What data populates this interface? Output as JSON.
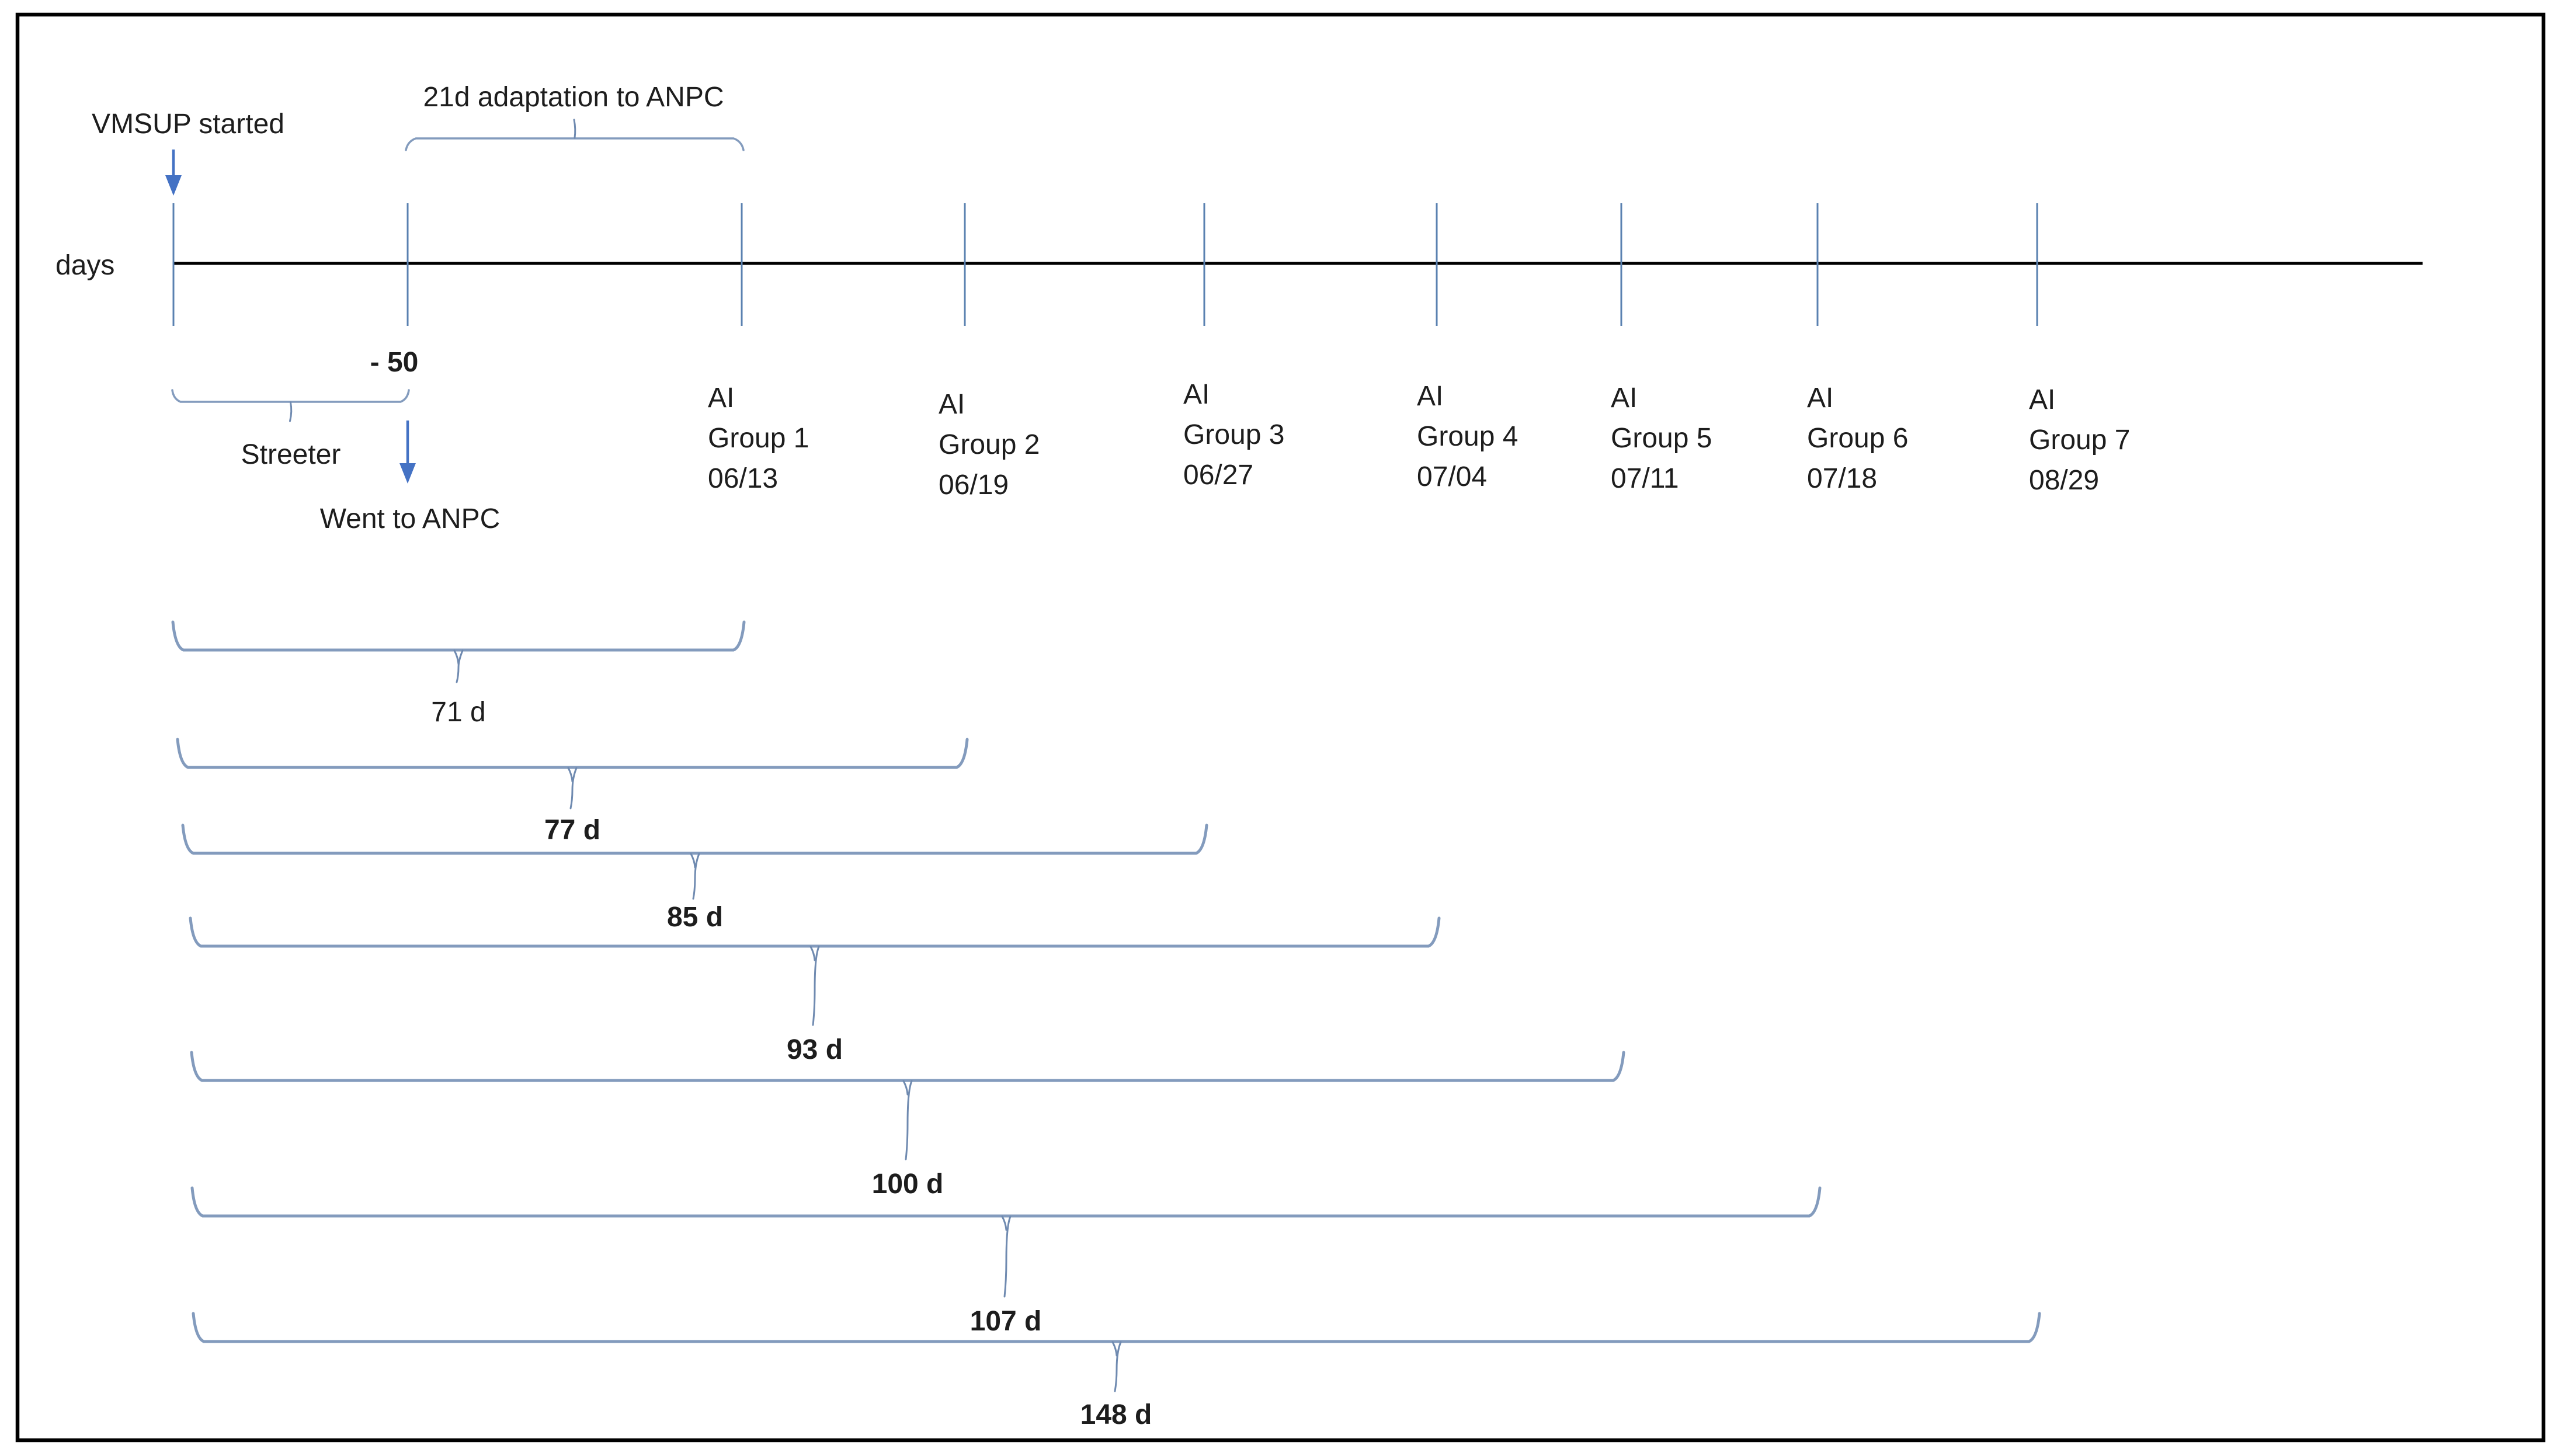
{
  "axis_label": "days",
  "annotations": {
    "vmsup": "VMSUP started",
    "adaptation": "21d adaptation to ANPC",
    "minus_50": "- 50",
    "streeter": "Streeter",
    "went_to_anpc": "Went to ANPC"
  },
  "groups": [
    {
      "line1": "AI",
      "line2": "Group 1",
      "date": "06/13"
    },
    {
      "line1": "AI",
      "line2": "Group 2",
      "date": "06/19"
    },
    {
      "line1": "AI",
      "line2": "Group 3",
      "date": "06/27"
    },
    {
      "line1": "AI",
      "line2": "Group 4",
      "date": "07/04"
    },
    {
      "line1": "AI",
      "line2": "Group 5",
      "date": "07/11"
    },
    {
      "line1": "AI",
      "line2": "Group 6",
      "date": "07/18"
    },
    {
      "line1": "AI",
      "line2": "Group 7",
      "date": "08/29"
    }
  ],
  "durations": [
    {
      "label": "71 d",
      "bold": false
    },
    {
      "label": "77 d",
      "bold": true
    },
    {
      "label": "85 d",
      "bold": true
    },
    {
      "label": "93 d",
      "bold": true
    },
    {
      "label": "100 d",
      "bold": true
    },
    {
      "label": "107 d",
      "bold": true
    },
    {
      "label": "148 d",
      "bold": true
    }
  ],
  "colors": {
    "text": "#1d1d1d",
    "axis_line": "#000000",
    "tick": "#5a81b0",
    "brace": "#839bbd",
    "brace_tail": "#6f8ab0",
    "arrow": "#4472c4",
    "border": "#000000"
  }
}
